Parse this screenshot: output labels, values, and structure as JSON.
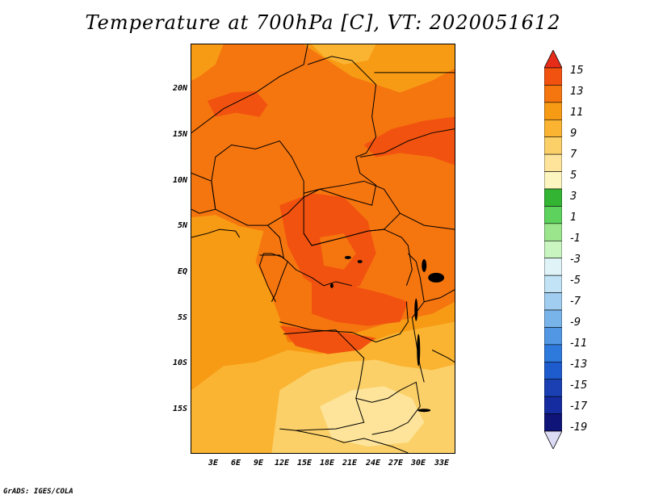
{
  "title": "Temperature at 700hPa [C], VT: 2020051612",
  "credit": "GrADS: IGES/COLA",
  "y_ticks": [
    "20N",
    "15N",
    "10N",
    "5N",
    "EQ",
    "5S",
    "10S",
    "15S"
  ],
  "x_ticks": [
    "3E",
    "6E",
    "9E",
    "12E",
    "15E",
    "18E",
    "21E",
    "24E",
    "27E",
    "30E",
    "33E"
  ],
  "colorbar": {
    "labels": [
      "15",
      "13",
      "11",
      "9",
      "7",
      "5",
      "3",
      "1",
      "-1",
      "-3",
      "-5",
      "-7",
      "-9",
      "-11",
      "-13",
      "-15",
      "-17",
      "-19"
    ],
    "colors": [
      "#e62d1a",
      "#f2520f",
      "#f5750f",
      "#f79a14",
      "#fab432",
      "#fbd068",
      "#fde49a",
      "#fdf5c0",
      "#33b533",
      "#5dd35d",
      "#9be68d",
      "#c8f5c0",
      "#e0f4f8",
      "#c1e3f5",
      "#a0cdf0",
      "#78b4ea",
      "#5197e3",
      "#2e79dc",
      "#1e5ccd",
      "#1a40b4",
      "#152ba0",
      "#0f1478",
      "#dcdcf5"
    ]
  }
}
